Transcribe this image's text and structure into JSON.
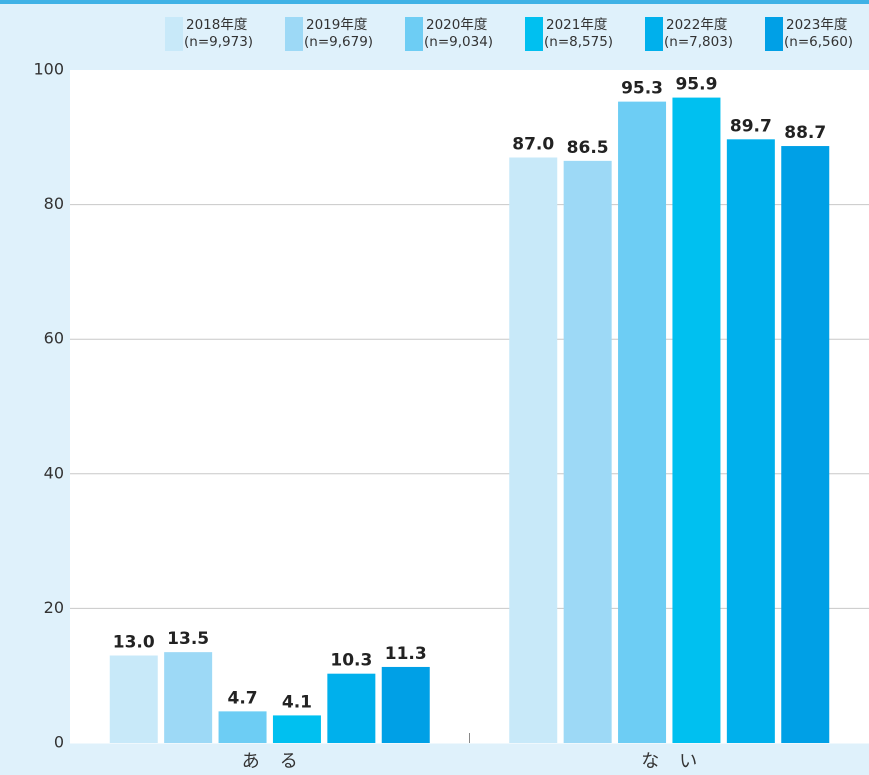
{
  "chart_data": {
    "type": "bar",
    "categories": [
      "ある",
      "ない"
    ],
    "series": [
      {
        "name": "2018年度",
        "n": "(n=9,973)",
        "color": "#c8e9f9",
        "values": [
          13.0,
          87.0
        ],
        "value_labels": [
          "13.0",
          "87.0"
        ]
      },
      {
        "name": "2019年度",
        "n": "(n=9,679)",
        "color": "#9dd9f6",
        "values": [
          13.5,
          86.5
        ],
        "value_labels": [
          "13.5",
          "86.5"
        ]
      },
      {
        "name": "2020年度",
        "n": "(n=9,034)",
        "color": "#6dcdf4",
        "values": [
          4.7,
          95.3
        ],
        "value_labels": [
          "4.7",
          "95.3"
        ]
      },
      {
        "name": "2021年度",
        "n": "(n=8,575)",
        "color": "#00c0f0",
        "values": [
          4.1,
          95.9
        ],
        "value_labels": [
          "4.1",
          "95.9"
        ]
      },
      {
        "name": "2022年度",
        "n": "(n=7,803)",
        "color": "#00b0ec",
        "values": [
          10.3,
          89.7
        ],
        "value_labels": [
          "10.3",
          "89.7"
        ]
      },
      {
        "name": "2023年度",
        "n": "(n=6,560)",
        "color": "#00a0e6",
        "values": [
          11.3,
          88.7
        ],
        "value_labels": [
          "11.3",
          "88.7"
        ]
      }
    ],
    "ylim": [
      0,
      100
    ],
    "yticks": [
      0,
      20,
      40,
      60,
      80,
      100
    ],
    "grid": true,
    "legend": "top"
  }
}
